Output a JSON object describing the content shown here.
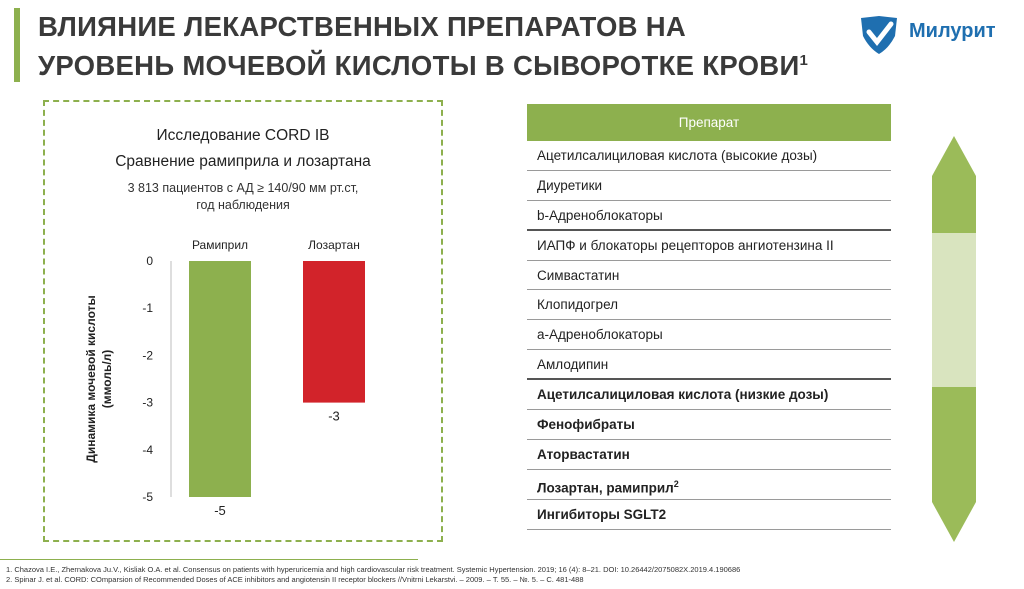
{
  "header": {
    "title_line1": "ВЛИЯНИЕ ЛЕКАРСТВЕННЫХ ПРЕПАРАТОВ НА",
    "title_line2": "УРОВЕНЬ МОЧЕВОЙ КИСЛОТЫ В СЫВОРОТКЕ КРОВИ",
    "title_sup": "1",
    "logo_text": "Милурит",
    "accent_color": "#8db04e"
  },
  "chart_data": {
    "type": "bar",
    "title": "Исследование CORD IB",
    "subtitle": "Сравнение рамиприла и лозартана",
    "note_line1": "3 813 пациентов с АД ≥ 140/90 мм рт.ст,",
    "note_line2": "год наблюдения",
    "ylabel_line1": "Динамика мочевой кислоты",
    "ylabel_line2": "(ммоль/л)",
    "categories": [
      "Рамиприл",
      "Лозартан"
    ],
    "values": [
      -5,
      -3
    ],
    "value_labels": [
      "-5",
      "-3"
    ],
    "colors": [
      "#8db04e",
      "#d2232a"
    ],
    "yticks": [
      "0",
      "-1",
      "-2",
      "-3",
      "-4",
      "-5"
    ],
    "ylim": [
      -5,
      0
    ],
    "grid": false
  },
  "table": {
    "header": "Препарат",
    "rows": [
      {
        "label": "Ацетилсалициловая кислота (высокие дозы)",
        "bold": false,
        "sup": ""
      },
      {
        "label": "Диуретики",
        "bold": false,
        "sup": ""
      },
      {
        "label": "b-Адреноблокаторы",
        "bold": false,
        "sup": ""
      },
      {
        "label": "ИАПФ и блокаторы рецепторов ангиотензина II",
        "bold": false,
        "sup": ""
      },
      {
        "label": "Симвастатин",
        "bold": false,
        "sup": ""
      },
      {
        "label": "Клопидогрел",
        "bold": false,
        "sup": ""
      },
      {
        "label": "а-Адреноблокаторы",
        "bold": false,
        "sup": ""
      },
      {
        "label": "Амлодипин",
        "bold": false,
        "sup": ""
      },
      {
        "label": "Ацетилсалициловая кислота (низкие дозы)",
        "bold": true,
        "sup": ""
      },
      {
        "label": "Фенофибраты",
        "bold": true,
        "sup": ""
      },
      {
        "label": "Аторвастатин",
        "bold": true,
        "sup": ""
      },
      {
        "label": "Лозартан, рамиприл",
        "bold": true,
        "sup": "2"
      },
      {
        "label": "Ингибиторы SGLT2",
        "bold": true,
        "sup": ""
      }
    ]
  },
  "scale_colors": {
    "dark": "#9bbb59",
    "light": "#d9e4bf"
  },
  "footnotes": {
    "line1": "1. Chazova I.E., Zhernakova Ju.V., Kisliak O.A. et al. Consensus on patients with hyperuricemia and high cardiovascular risk treatment. Systemic Hypertension. 2019; 16 (4): 8–21. DOI: 10.26442/2075082X.2019.4.190686",
    "line2": "2. Spinar J. et al. CORD: COmparsion of Recommended Doses of ACE inhibitors and angiotensin II receptor blockers //Vnitrni Lekarstvi. – 2009. – Т. 55. – №. 5. – С. 481-488"
  }
}
